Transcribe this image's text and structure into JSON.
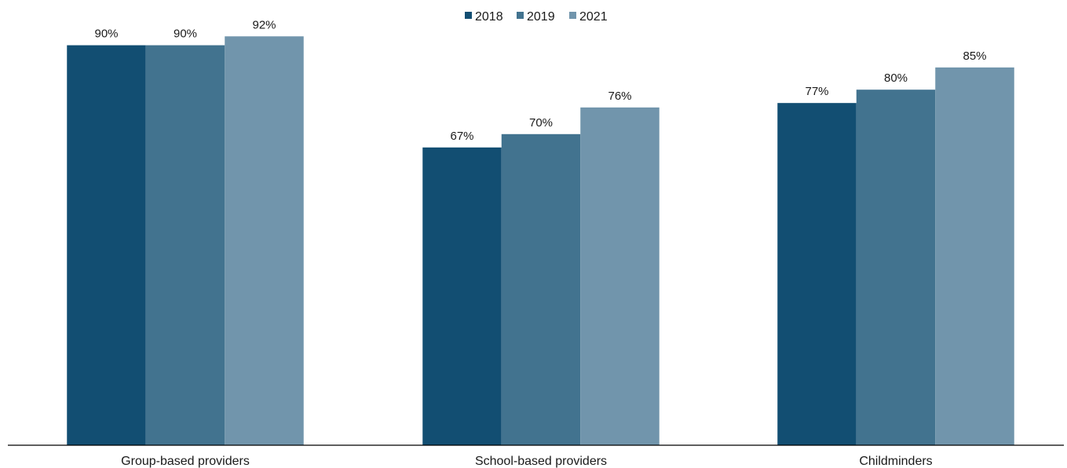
{
  "chart_data": {
    "type": "bar",
    "title": "",
    "xlabel": "",
    "ylabel": "",
    "ylim": [
      0,
      100
    ],
    "grid": false,
    "legend_position": "top-center",
    "categories": [
      "Group-based providers",
      "School-based providers",
      "Childminders"
    ],
    "series": [
      {
        "name": "2018",
        "color": "#124e72",
        "values": [
          90,
          67,
          77
        ],
        "labels": [
          "90%",
          "67%",
          "77%"
        ]
      },
      {
        "name": "2019",
        "color": "#42738f",
        "values": [
          90,
          70,
          80
        ],
        "labels": [
          "90%",
          "70%",
          "80%"
        ]
      },
      {
        "name": "2021",
        "color": "#7195ac",
        "values": [
          92,
          76,
          85
        ],
        "labels": [
          "92%",
          "76%",
          "85%"
        ]
      }
    ]
  }
}
